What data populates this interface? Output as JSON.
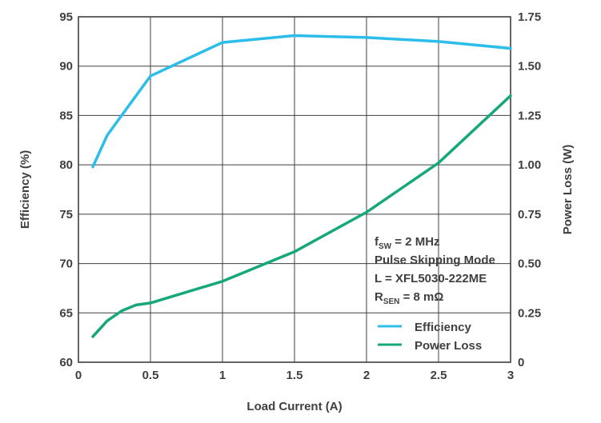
{
  "chart_data": {
    "type": "line",
    "title": "",
    "xlabel": "Load Current (A)",
    "ylabel": "Efficiency (%)",
    "y2label": "Power Loss (W)",
    "xlim": [
      0,
      3
    ],
    "ylim": [
      60,
      95
    ],
    "y2lim": [
      0,
      1.75
    ],
    "grid": true,
    "x_ticks": [
      "0",
      "0.5",
      "1",
      "1.5",
      "2",
      "2.5",
      "3"
    ],
    "y_ticks": [
      "60",
      "65",
      "70",
      "75",
      "80",
      "85",
      "90",
      "95"
    ],
    "y2_ticks": [
      "0",
      "0.25",
      "0.50",
      "0.75",
      "1.00",
      "1.25",
      "1.50",
      "1.75"
    ],
    "legend_position": "bottom-right",
    "series": [
      {
        "name": "Efficiency",
        "axis": "left",
        "color": "#2dbdeb",
        "x": [
          0.1,
          0.2,
          0.3,
          0.5,
          1.0,
          1.5,
          2.0,
          2.5,
          3.0
        ],
        "y": [
          79.8,
          83.0,
          85.0,
          89.0,
          92.4,
          93.1,
          92.9,
          92.5,
          91.8
        ]
      },
      {
        "name": "Power Loss",
        "axis": "right",
        "color": "#16a87b",
        "x": [
          0.1,
          0.2,
          0.3,
          0.4,
          0.5,
          1.0,
          1.5,
          2.0,
          2.5,
          3.0
        ],
        "y": [
          0.13,
          0.21,
          0.26,
          0.29,
          0.3,
          0.41,
          0.56,
          0.76,
          1.01,
          1.35
        ]
      }
    ],
    "annotations": {
      "fsw_main": "f",
      "fsw_sub": "SW",
      "fsw_value": " = 2 MHz",
      "mode": "Pulse Skipping Mode",
      "inductor": "L = XFL5030-222ME",
      "rsen_main": "R",
      "rsen_sub": "SEN",
      "rsen_value": " = 8 mΩ"
    }
  }
}
